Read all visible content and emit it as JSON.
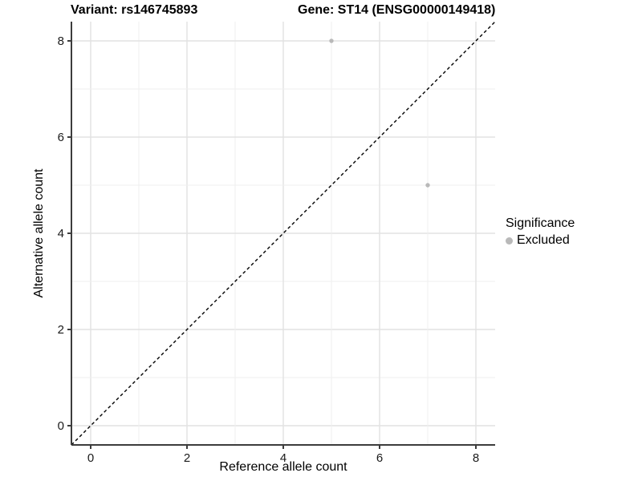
{
  "title": {
    "variant": "Variant: rs146745893",
    "gene": "Gene: ST14 (ENSG00000149418)"
  },
  "chart_data": {
    "type": "scatter",
    "title_left": "Variant: rs146745893",
    "title_right": "Gene: ST14 (ENSG00000149418)",
    "xlabel": "Reference allele count",
    "ylabel": "Alternative allele count",
    "xlim": [
      -0.4,
      8.4
    ],
    "ylim": [
      -0.4,
      8.4
    ],
    "xticks": [
      0,
      2,
      4,
      6,
      8
    ],
    "yticks": [
      0,
      2,
      4,
      6,
      8
    ],
    "grid": "on",
    "gridline_step": 1,
    "series": [
      {
        "name": "Excluded",
        "color": "#b9b9b9",
        "points": [
          {
            "x": 5,
            "y": 8
          },
          {
            "x": 7,
            "y": 5
          }
        ]
      }
    ],
    "reference_line": {
      "type": "identity",
      "style": "dashed",
      "color": "#000000"
    },
    "legend": {
      "title": "Significance",
      "position": "right",
      "entries": [
        {
          "label": "Excluded",
          "color": "#b9b9b9"
        }
      ]
    }
  },
  "colors": {
    "background": "#ffffff",
    "axis_line": "#3c3c3c",
    "grid_major": "#e2e2e2",
    "grid_minor": "#efefef",
    "tick_text": "#1a1a1a",
    "point": "#b9b9b9"
  }
}
